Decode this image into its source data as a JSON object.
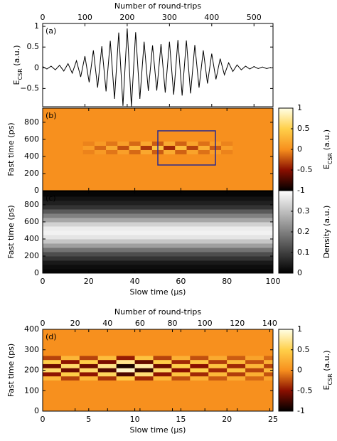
{
  "chart_data": [
    {
      "type": "line",
      "panel_label": "(a)",
      "xaxis_side": "top",
      "xlabel": "Number of round-trips",
      "xlim": [
        0,
        545
      ],
      "xticks": [
        0,
        100,
        200,
        300,
        400,
        500
      ],
      "ylim": [
        -0.94,
        1.07
      ],
      "yticks": [
        1,
        0.5,
        0,
        {
          "value": -0.5,
          "label": "−0.5"
        }
      ],
      "ylabel": {
        "main": "E",
        "sub": "CSR",
        "rest": " (a.u.)"
      },
      "color": "#000000",
      "x": [
        0,
        10,
        20,
        30,
        40,
        50,
        60,
        70,
        80,
        90,
        100,
        110,
        120,
        130,
        140,
        150,
        160,
        170,
        180,
        190,
        200,
        210,
        220,
        230,
        240,
        250,
        260,
        270,
        280,
        290,
        300,
        310,
        320,
        330,
        340,
        350,
        360,
        370,
        380,
        390,
        400,
        410,
        420,
        430,
        440,
        450,
        460,
        470,
        480,
        490,
        500,
        510,
        520,
        530,
        540
      ],
      "values": [
        0.03,
        -0.03,
        0.04,
        -0.05,
        0.06,
        -0.08,
        0.1,
        -0.13,
        0.17,
        -0.22,
        0.28,
        -0.35,
        0.42,
        -0.48,
        0.52,
        -0.57,
        0.65,
        -0.75,
        0.85,
        -0.92,
        0.95,
        -0.93,
        0.86,
        -0.75,
        0.63,
        -0.56,
        0.54,
        -0.55,
        0.57,
        -0.6,
        0.63,
        -0.65,
        0.67,
        -0.67,
        0.66,
        -0.62,
        0.55,
        -0.48,
        0.42,
        -0.38,
        0.34,
        -0.28,
        0.22,
        -0.17,
        0.12,
        -0.09,
        0.07,
        -0.05,
        0.04,
        -0.03,
        0.03,
        -0.02,
        0.02,
        -0.02,
        0.01
      ]
    },
    {
      "type": "heatmap",
      "panel_label": "(b)",
      "xlim": [
        0,
        100
      ],
      "xticks": [
        0,
        20,
        40,
        60,
        80,
        100
      ],
      "show_xticklabels": false,
      "ylim": [
        0,
        966
      ],
      "yticks": [
        0,
        200,
        400,
        600,
        800
      ],
      "ylabel": "Fast time (ps)",
      "x": [
        20,
        25,
        30,
        35,
        40,
        45,
        50,
        55,
        60,
        65,
        70,
        75,
        80
      ],
      "y": [
        450,
        500,
        550
      ],
      "z": [
        [
          -0.05,
          0.08,
          -0.1,
          0.12,
          -0.15,
          0.18,
          -0.2,
          0.2,
          -0.18,
          0.15,
          -0.12,
          0.1,
          -0.05
        ],
        [
          0.1,
          -0.15,
          0.2,
          -0.25,
          0.3,
          -0.35,
          0.4,
          -0.4,
          0.35,
          -0.3,
          0.25,
          -0.2,
          0.1
        ],
        [
          -0.05,
          0.08,
          -0.1,
          0.12,
          -0.15,
          0.18,
          -0.2,
          0.2,
          -0.18,
          0.15,
          -0.12,
          0.1,
          -0.05
        ]
      ],
      "box": {
        "x": [
          50,
          75
        ],
        "y": [
          300,
          700
        ]
      },
      "box_color": "#2b2b8f",
      "colormap": [
        "#000000",
        "#8a0f00",
        "#f7901e",
        "#ffd04a",
        "#ffffe6"
      ],
      "clim": [
        -1,
        1
      ],
      "cticks": [
        1,
        0.5,
        0,
        {
          "value": -0.5,
          "label": "-0.5"
        },
        {
          "value": -1,
          "label": "-1"
        }
      ],
      "clabel": {
        "main": "E",
        "sub": "CSR",
        "rest": " (a.u.)"
      }
    },
    {
      "type": "heatmap",
      "panel_label": "(c)",
      "panel_label_color": "#ffffff",
      "xlabel": "Slow time (μs)",
      "xlim": [
        0,
        100
      ],
      "xticks": [
        0,
        20,
        40,
        60,
        80,
        100
      ],
      "ylim": [
        0,
        966
      ],
      "yticks": [
        0,
        200,
        400,
        600,
        800
      ],
      "ylabel": "Fast time (ps)",
      "y": [
        25,
        75,
        125,
        175,
        225,
        275,
        325,
        375,
        425,
        475,
        525,
        575,
        625,
        675,
        725,
        775,
        825,
        875,
        925
      ],
      "values": [
        0.01,
        0.02,
        0.04,
        0.08,
        0.12,
        0.18,
        0.25,
        0.31,
        0.36,
        0.38,
        0.37,
        0.33,
        0.26,
        0.2,
        0.14,
        0.08,
        0.05,
        0.03,
        0.01
      ],
      "colormap": [
        "#000000",
        "#ffffff"
      ],
      "clim": [
        0,
        0.4
      ],
      "cticks": [
        0,
        0.1,
        0.2,
        0.3
      ],
      "clabel": "Density (a.u.)"
    },
    {
      "type": "heatmap",
      "panel_label": "(d)",
      "xlabel": "Slow time (μs)",
      "xlim": [
        0,
        25
      ],
      "xticks": [
        0,
        5,
        10,
        15,
        20,
        25
      ],
      "x2label": "Number of round-trips",
      "x2lim": [
        0,
        142
      ],
      "x2ticks": [
        0,
        20,
        40,
        60,
        80,
        100,
        120,
        140
      ],
      "ylim": [
        0,
        400
      ],
      "yticks": [
        0,
        100,
        200,
        300,
        400
      ],
      "ylabel": "Fast time (ps)",
      "x": [
        1,
        3,
        5,
        7,
        9,
        11,
        13,
        15,
        17,
        19,
        21,
        23,
        25
      ],
      "y": [
        160,
        180,
        200,
        220,
        240,
        260
      ],
      "z": [
        [
          0.3,
          -0.3,
          0.3,
          -0.35,
          0.45,
          -0.4,
          0.3,
          -0.25,
          0.25,
          -0.2,
          0.2,
          -0.15,
          0.15
        ],
        [
          -0.48,
          0.48,
          -0.48,
          0.56,
          -0.72,
          0.64,
          -0.48,
          0.4,
          -0.4,
          0.32,
          -0.32,
          0.24,
          -0.24
        ],
        [
          0.6,
          -0.6,
          0.6,
          -0.7,
          0.9,
          -0.8,
          0.6,
          -0.5,
          0.5,
          -0.4,
          0.4,
          -0.3,
          0.3
        ],
        [
          -0.6,
          0.6,
          -0.6,
          0.7,
          -0.9,
          0.8,
          -0.6,
          0.5,
          -0.5,
          0.4,
          -0.4,
          0.3,
          -0.3
        ],
        [
          0.48,
          -0.48,
          0.48,
          -0.56,
          0.72,
          -0.64,
          0.48,
          -0.4,
          0.4,
          -0.32,
          0.32,
          -0.24,
          0.24
        ],
        [
          -0.3,
          0.3,
          -0.3,
          0.35,
          -0.45,
          0.4,
          -0.3,
          0.25,
          -0.25,
          0.2,
          -0.2,
          0.15,
          -0.15
        ]
      ],
      "colormap": [
        "#000000",
        "#8a0f00",
        "#f7901e",
        "#ffd04a",
        "#ffffe6"
      ],
      "clim": [
        -1,
        1
      ],
      "cticks": [
        1,
        0.5,
        0,
        {
          "value": -0.5,
          "label": "-0.5"
        },
        {
          "value": -1,
          "label": "-1"
        }
      ],
      "clabel": {
        "main": "E",
        "sub": "CSR",
        "rest": " (a.u.)"
      }
    }
  ]
}
